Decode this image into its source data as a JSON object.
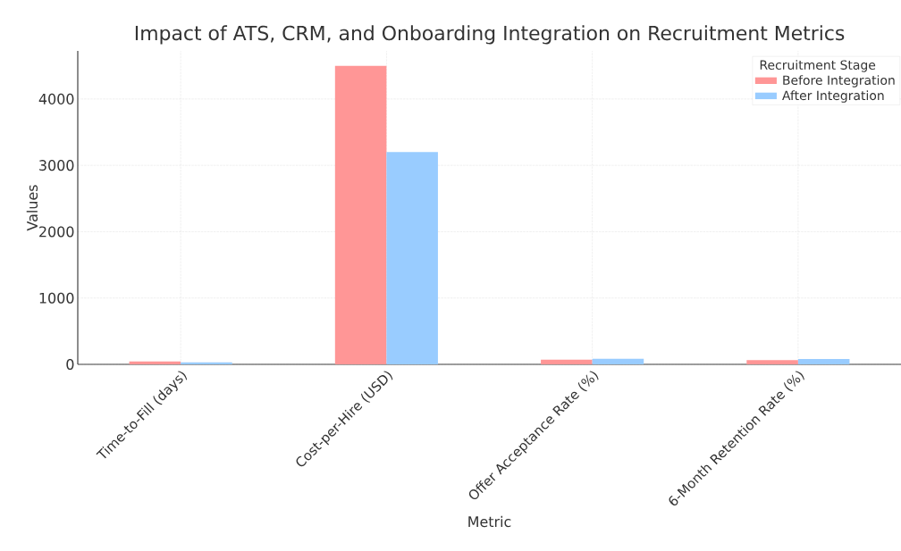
{
  "chart_data": {
    "type": "bar",
    "title": "Impact of ATS, CRM, and Onboarding Integration on Recruitment Metrics",
    "xlabel": "Metric",
    "ylabel": "Values",
    "legend_title": "Recruitment Stage",
    "categories": [
      "Time-to-Fill (days)",
      "Cost-per-Hire (USD)",
      "Offer Acceptance Rate (%)",
      "6-Month Retention Rate (%)"
    ],
    "series": [
      {
        "name": "Before Integration",
        "color": "#ff9696",
        "values": [
          45,
          4500,
          70,
          65
        ]
      },
      {
        "name": "After Integration",
        "color": "#99ccff",
        "values": [
          30,
          3200,
          85,
          80
        ]
      }
    ],
    "ylim": [
      0,
      4725
    ],
    "yticks": [
      0,
      1000,
      2000,
      3000,
      4000
    ],
    "grid": true,
    "legend": "top right"
  }
}
